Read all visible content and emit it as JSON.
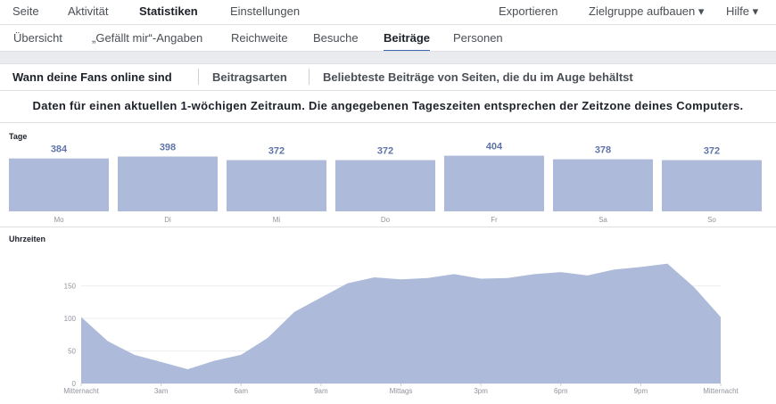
{
  "nav": {
    "left": [
      "Seite",
      "Aktivität",
      "Statistiken",
      "Einstellungen"
    ],
    "right": [
      "Exportieren",
      "Zielgruppe aufbauen ▾",
      "Hilfe ▾"
    ]
  },
  "subnav": [
    "Übersicht",
    "„Gefällt mir“-Angaben",
    "Reichweite",
    "Besuche",
    "Beiträge",
    "Personen"
  ],
  "tabs": [
    "Wann deine Fans online sind",
    "Beitragsarten",
    "Beliebteste Beiträge von Seiten, die du im Auge behältst"
  ],
  "note": "Daten für einen aktuellen 1-wöchigen Zeitraum. Die angegebenen Tageszeiten entsprechen der Zeitzone deines Computers.",
  "chart_data": [
    {
      "type": "bar",
      "title": "Tage",
      "categories": [
        "Mo",
        "Di",
        "Mi",
        "Do",
        "Fr",
        "Sa",
        "So"
      ],
      "values": [
        384,
        398,
        372,
        372,
        404,
        378,
        372
      ],
      "color": "#aebad9"
    },
    {
      "type": "area",
      "title": "Uhrzeiten",
      "color": "#aebad9",
      "x": [
        0,
        1,
        2,
        3,
        4,
        5,
        6,
        7,
        8,
        9,
        10,
        11,
        12,
        13,
        14,
        15,
        16,
        17,
        18,
        19,
        20,
        21,
        22,
        23,
        24
      ],
      "values": [
        102,
        65,
        44,
        33,
        22,
        35,
        44,
        70,
        110,
        132,
        154,
        163,
        160,
        162,
        168,
        161,
        162,
        168,
        171,
        166,
        175,
        179,
        184,
        148,
        102
      ],
      "xlim": [
        0,
        24
      ],
      "ylim": [
        0,
        200
      ],
      "xticks": [
        {
          "value": 0,
          "label": "Mitternacht"
        },
        {
          "value": 3,
          "label": "3am"
        },
        {
          "value": 6,
          "label": "6am"
        },
        {
          "value": 9,
          "label": "9am"
        },
        {
          "value": 12,
          "label": "Mittags"
        },
        {
          "value": 15,
          "label": "3pm"
        },
        {
          "value": 18,
          "label": "6pm"
        },
        {
          "value": 21,
          "label": "9pm"
        },
        {
          "value": 24,
          "label": "Mitternacht"
        }
      ],
      "yticks": [
        0,
        50,
        100,
        150
      ],
      "grid": true
    }
  ]
}
